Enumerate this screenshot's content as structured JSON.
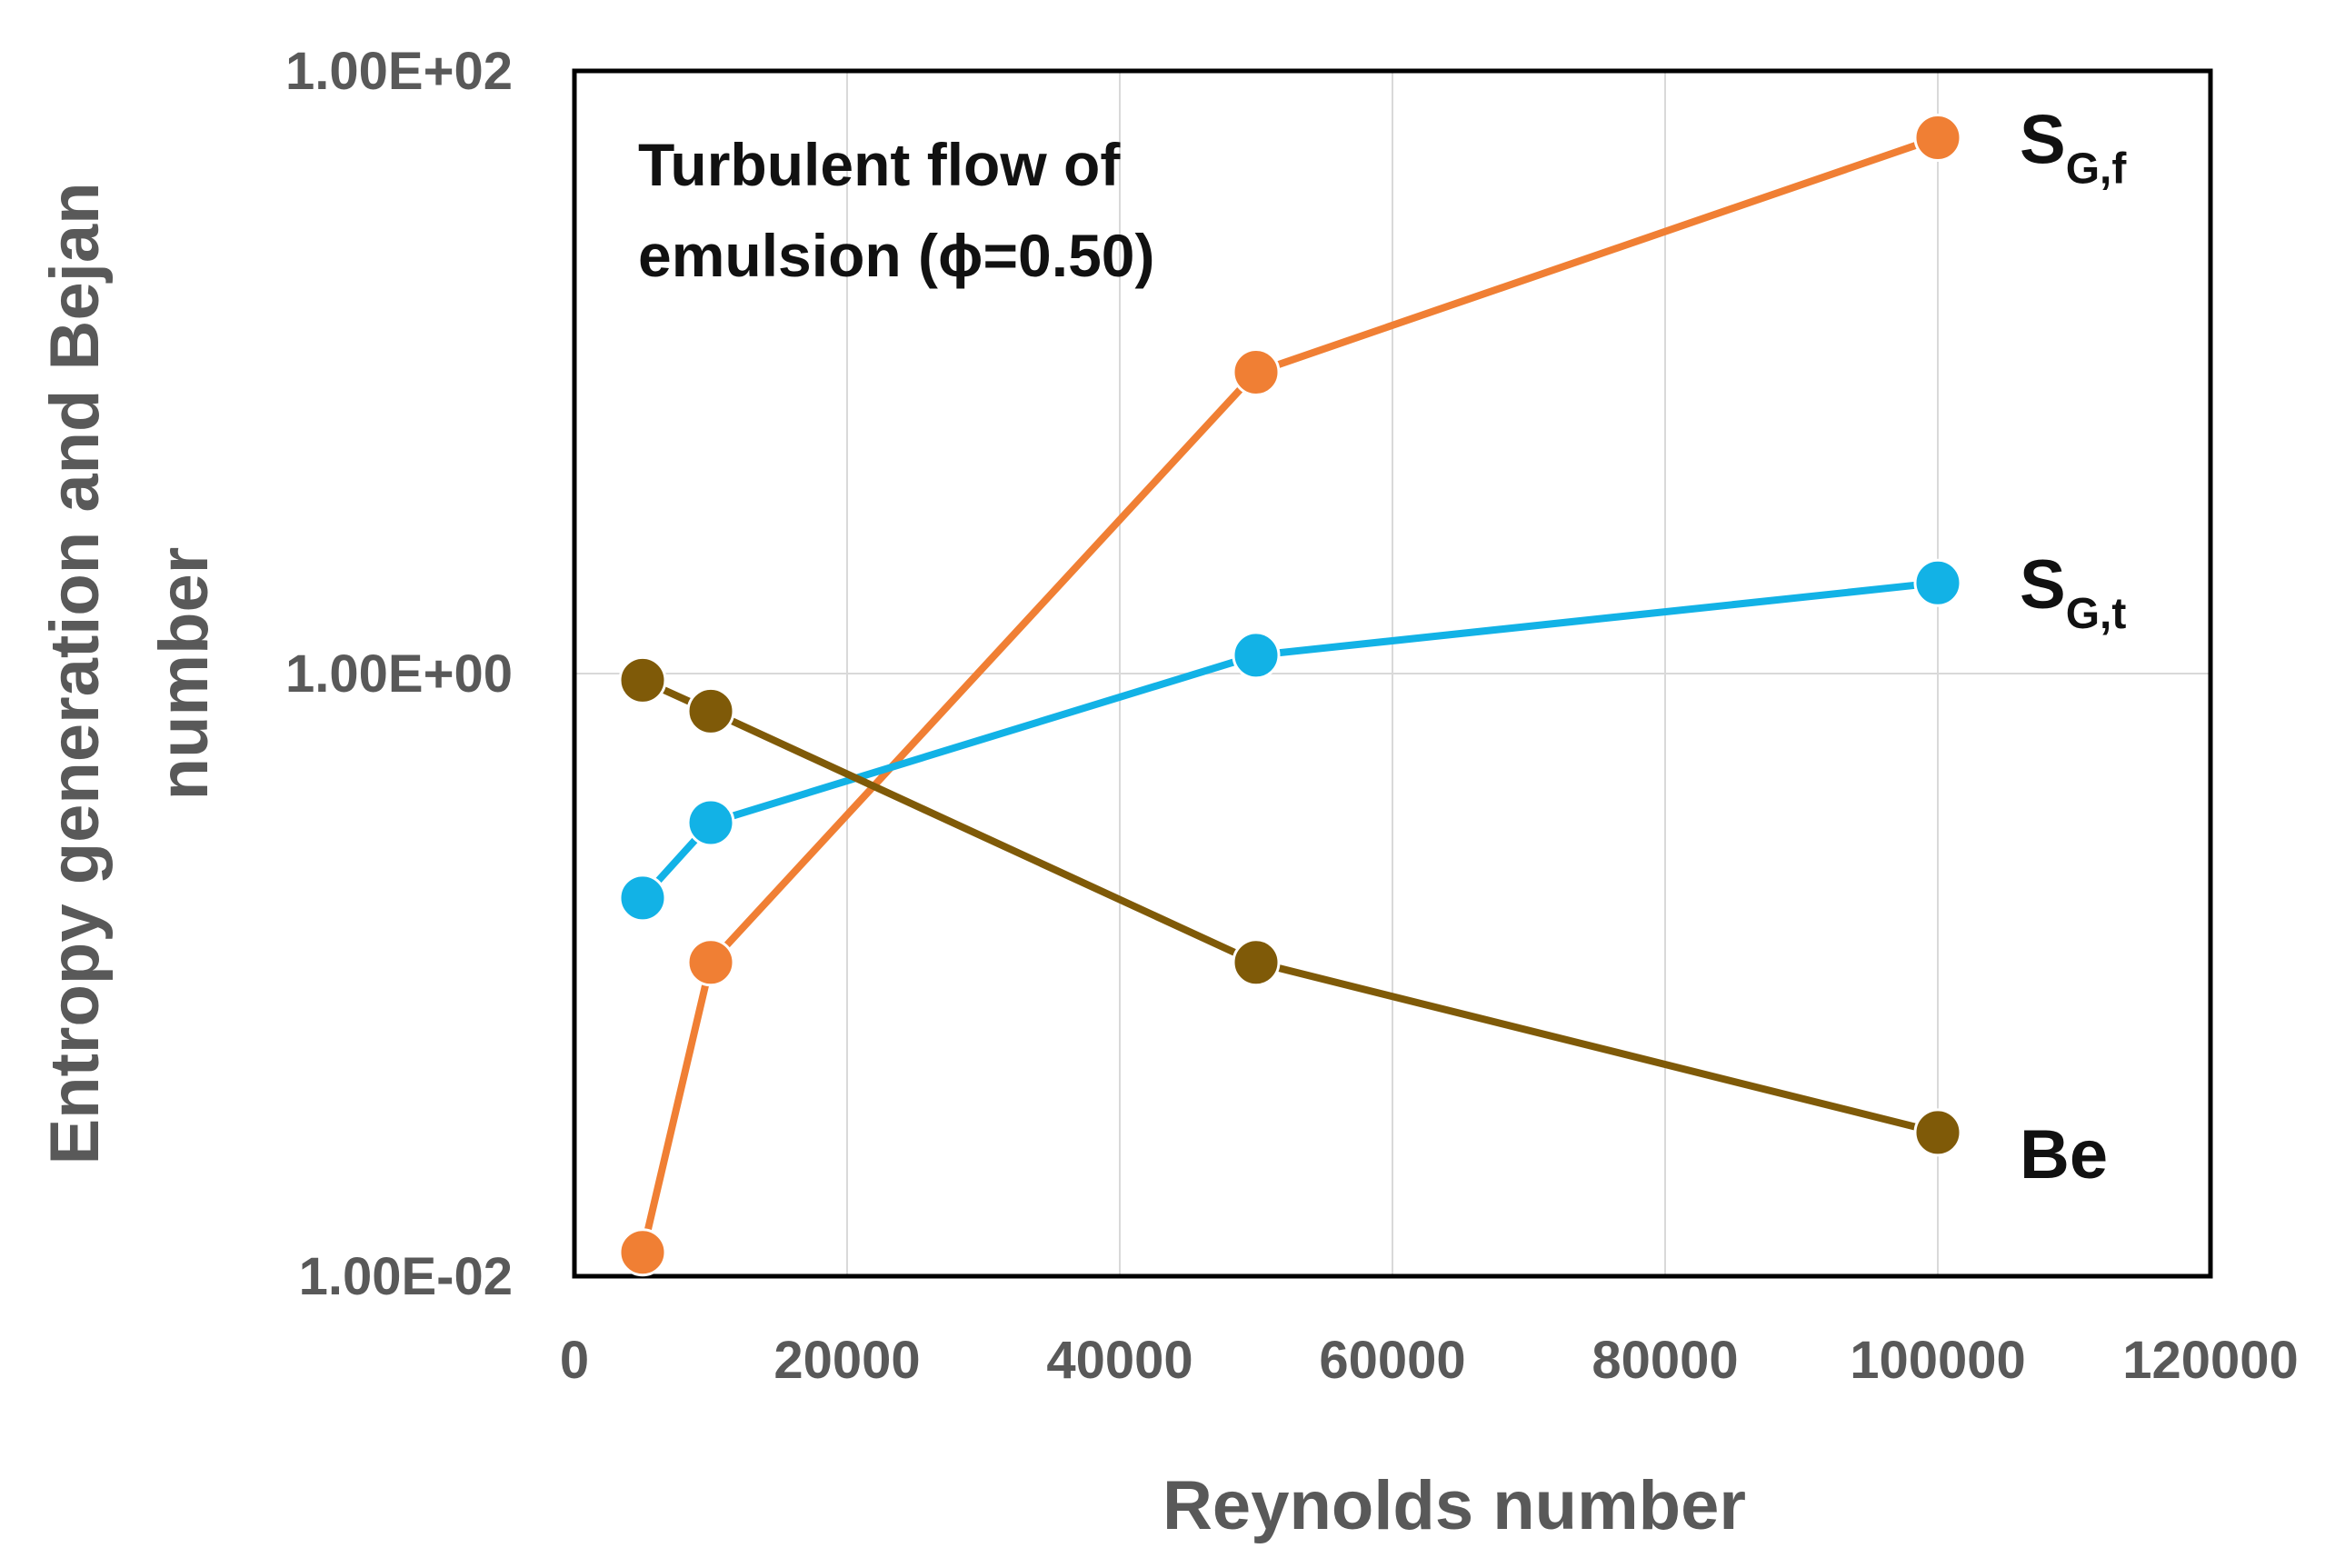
{
  "chart_data": {
    "type": "line",
    "annotation_lines": [
      "Turbulent flow of",
      "emulsion (ϕ=0.50)"
    ],
    "xlabel": "Reynolds number",
    "ylabel_lines": [
      "Entropy generation and Bejan",
      "number"
    ],
    "xscale": "linear",
    "yscale": "log",
    "xlim": [
      0,
      120000
    ],
    "ylim": [
      0.01,
      100
    ],
    "x_ticks": [
      0,
      20000,
      40000,
      60000,
      80000,
      100000,
      120000
    ],
    "x_tick_labels": [
      "0",
      "20000",
      "40000",
      "60000",
      "80000",
      "100000",
      "120000"
    ],
    "y_ticks": [
      0.01,
      1,
      100
    ],
    "y_tick_labels": [
      "1.00E-02",
      "1.00E+00",
      "1.00E+02"
    ],
    "grid": true,
    "series": [
      {
        "name": "S_G,f",
        "label_main": "S",
        "label_sub": "G,f",
        "color": "#F07F34",
        "x": [
          5000,
          10000,
          50000,
          100000
        ],
        "values": [
          0.012,
          0.11,
          10,
          60
        ]
      },
      {
        "name": "S_G,t",
        "label_main": "S",
        "label_sub": "G,t",
        "color": "#12B2E6",
        "x": [
          5000,
          10000,
          50000,
          100000
        ],
        "values": [
          0.18,
          0.32,
          1.15,
          2.0
        ]
      },
      {
        "name": "Be",
        "label_main": "Be",
        "label_sub": "",
        "color": "#7F5A08",
        "x": [
          5000,
          10000,
          50000,
          100000
        ],
        "values": [
          0.95,
          0.75,
          0.11,
          0.03
        ]
      }
    ]
  }
}
